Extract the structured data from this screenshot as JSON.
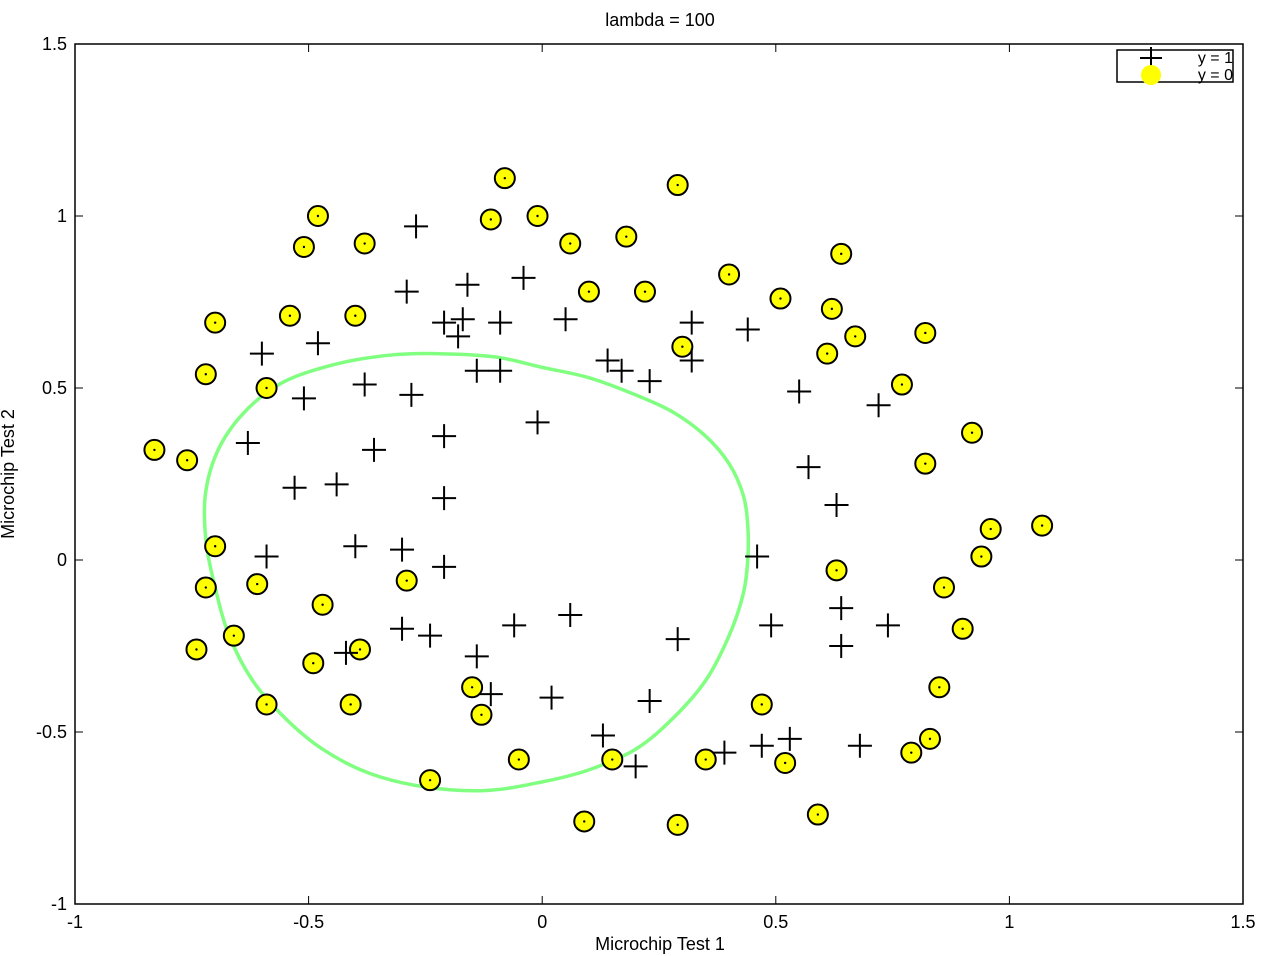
{
  "chart_data": {
    "type": "scatter",
    "title": "lambda = 100",
    "xlabel": "Microchip Test 1",
    "ylabel": "Microchip Test 2",
    "xlim": [
      -1,
      1.5
    ],
    "ylim": [
      -1,
      1.5
    ],
    "x_ticks": [
      "-1",
      "-0.5",
      "0",
      "0.5",
      "1",
      "1.5"
    ],
    "y_ticks": [
      "-1",
      "-0.5",
      "0",
      "0.5",
      "1",
      "1.5"
    ],
    "x_tick_values": [
      -1,
      -0.5,
      0,
      0.5,
      1,
      1.5
    ],
    "y_tick_values": [
      -1,
      -0.5,
      0,
      0.5,
      1,
      1.5
    ],
    "legend_position": "top-right",
    "colors": {
      "positive": "#000000",
      "negative_fill": "#ffff00",
      "negative_edge": "#000000",
      "boundary": "#80ff80"
    },
    "series": [
      {
        "name": "y = 1",
        "marker": "plus",
        "points": [
          [
            -0.27,
            0.97
          ],
          [
            -0.29,
            0.78
          ],
          [
            -0.16,
            0.8
          ],
          [
            -0.04,
            0.82
          ],
          [
            -0.21,
            0.69
          ],
          [
            -0.17,
            0.7
          ],
          [
            -0.18,
            0.65
          ],
          [
            -0.09,
            0.69
          ],
          [
            0.05,
            0.7
          ],
          [
            0.32,
            0.69
          ],
          [
            0.44,
            0.67
          ],
          [
            -0.48,
            0.63
          ],
          [
            -0.6,
            0.6
          ],
          [
            0.14,
            0.58
          ],
          [
            0.32,
            0.58
          ],
          [
            0.17,
            0.55
          ],
          [
            0.23,
            0.52
          ],
          [
            -0.14,
            0.55
          ],
          [
            -0.09,
            0.55
          ],
          [
            0.55,
            0.49
          ],
          [
            -0.38,
            0.51
          ],
          [
            -0.51,
            0.47
          ],
          [
            -0.28,
            0.48
          ],
          [
            0.72,
            0.45
          ],
          [
            -0.01,
            0.4
          ],
          [
            -0.36,
            0.32
          ],
          [
            -0.21,
            0.36
          ],
          [
            -0.63,
            0.34
          ],
          [
            0.57,
            0.27
          ],
          [
            -0.44,
            0.22
          ],
          [
            -0.53,
            0.21
          ],
          [
            -0.21,
            0.18
          ],
          [
            0.63,
            0.16
          ],
          [
            -0.59,
            0.01
          ],
          [
            -0.4,
            0.04
          ],
          [
            -0.3,
            0.03
          ],
          [
            0.46,
            0.01
          ],
          [
            -0.21,
            -0.02
          ],
          [
            0.06,
            -0.16
          ],
          [
            -0.06,
            -0.19
          ],
          [
            0.49,
            -0.19
          ],
          [
            0.64,
            -0.14
          ],
          [
            0.74,
            -0.19
          ],
          [
            -0.3,
            -0.2
          ],
          [
            -0.24,
            -0.22
          ],
          [
            0.29,
            -0.23
          ],
          [
            0.64,
            -0.25
          ],
          [
            -0.42,
            -0.27
          ],
          [
            -0.14,
            -0.28
          ],
          [
            -0.11,
            -0.39
          ],
          [
            0.02,
            -0.4
          ],
          [
            0.23,
            -0.41
          ],
          [
            0.13,
            -0.51
          ],
          [
            0.53,
            -0.52
          ],
          [
            0.68,
            -0.54
          ],
          [
            0.47,
            -0.54
          ],
          [
            0.39,
            -0.56
          ],
          [
            0.2,
            -0.6
          ]
        ]
      },
      {
        "name": "y = 0",
        "marker": "circle",
        "points": [
          [
            -0.08,
            1.11
          ],
          [
            0.29,
            1.09
          ],
          [
            -0.48,
            1.0
          ],
          [
            -0.11,
            0.99
          ],
          [
            -0.01,
            1.0
          ],
          [
            -0.51,
            0.91
          ],
          [
            -0.38,
            0.92
          ],
          [
            0.06,
            0.92
          ],
          [
            0.18,
            0.94
          ],
          [
            0.64,
            0.89
          ],
          [
            0.4,
            0.83
          ],
          [
            0.1,
            0.78
          ],
          [
            0.22,
            0.78
          ],
          [
            0.51,
            0.76
          ],
          [
            0.62,
            0.73
          ],
          [
            -0.54,
            0.71
          ],
          [
            -0.4,
            0.71
          ],
          [
            -0.7,
            0.69
          ],
          [
            0.67,
            0.65
          ],
          [
            0.82,
            0.66
          ],
          [
            0.3,
            0.62
          ],
          [
            0.61,
            0.6
          ],
          [
            -0.72,
            0.54
          ],
          [
            0.77,
            0.51
          ],
          [
            -0.59,
            0.5
          ],
          [
            0.92,
            0.37
          ],
          [
            -0.83,
            0.32
          ],
          [
            -0.76,
            0.29
          ],
          [
            0.82,
            0.28
          ],
          [
            1.07,
            0.1
          ],
          [
            0.96,
            0.09
          ],
          [
            -0.7,
            0.04
          ],
          [
            0.94,
            0.01
          ],
          [
            0.63,
            -0.03
          ],
          [
            -0.61,
            -0.07
          ],
          [
            -0.29,
            -0.06
          ],
          [
            -0.72,
            -0.08
          ],
          [
            0.86,
            -0.08
          ],
          [
            -0.47,
            -0.13
          ],
          [
            -0.66,
            -0.22
          ],
          [
            0.9,
            -0.2
          ],
          [
            -0.74,
            -0.26
          ],
          [
            -0.49,
            -0.3
          ],
          [
            -0.39,
            -0.26
          ],
          [
            -0.15,
            -0.37
          ],
          [
            0.85,
            -0.37
          ],
          [
            -0.59,
            -0.42
          ],
          [
            -0.41,
            -0.42
          ],
          [
            0.47,
            -0.42
          ],
          [
            -0.13,
            -0.45
          ],
          [
            0.83,
            -0.52
          ],
          [
            0.79,
            -0.56
          ],
          [
            -0.05,
            -0.58
          ],
          [
            0.15,
            -0.58
          ],
          [
            0.35,
            -0.58
          ],
          [
            0.52,
            -0.59
          ],
          [
            -0.24,
            -0.64
          ],
          [
            0.59,
            -0.74
          ],
          [
            0.09,
            -0.76
          ],
          [
            0.29,
            -0.77
          ]
        ]
      }
    ],
    "decision_boundary": {
      "color": "#80ff80",
      "points": [
        [
          -0.23,
          0.6
        ],
        [
          -0.1,
          0.59
        ],
        [
          0.0,
          0.56
        ],
        [
          0.1,
          0.53
        ],
        [
          0.2,
          0.48
        ],
        [
          0.28,
          0.43
        ],
        [
          0.35,
          0.36
        ],
        [
          0.4,
          0.28
        ],
        [
          0.43,
          0.19
        ],
        [
          0.44,
          0.1
        ],
        [
          0.44,
          0.0
        ],
        [
          0.43,
          -0.1
        ],
        [
          0.4,
          -0.22
        ],
        [
          0.35,
          -0.35
        ],
        [
          0.28,
          -0.46
        ],
        [
          0.2,
          -0.55
        ],
        [
          0.1,
          -0.61
        ],
        [
          0.0,
          -0.645
        ],
        [
          -0.12,
          -0.67
        ],
        [
          -0.25,
          -0.66
        ],
        [
          -0.37,
          -0.62
        ],
        [
          -0.47,
          -0.55
        ],
        [
          -0.55,
          -0.46
        ],
        [
          -0.62,
          -0.35
        ],
        [
          -0.67,
          -0.22
        ],
        [
          -0.7,
          -0.08
        ],
        [
          -0.72,
          0.06
        ],
        [
          -0.72,
          0.2
        ],
        [
          -0.69,
          0.33
        ],
        [
          -0.63,
          0.44
        ],
        [
          -0.55,
          0.52
        ],
        [
          -0.44,
          0.57
        ],
        [
          -0.33,
          0.595
        ],
        [
          -0.23,
          0.6
        ]
      ]
    }
  }
}
